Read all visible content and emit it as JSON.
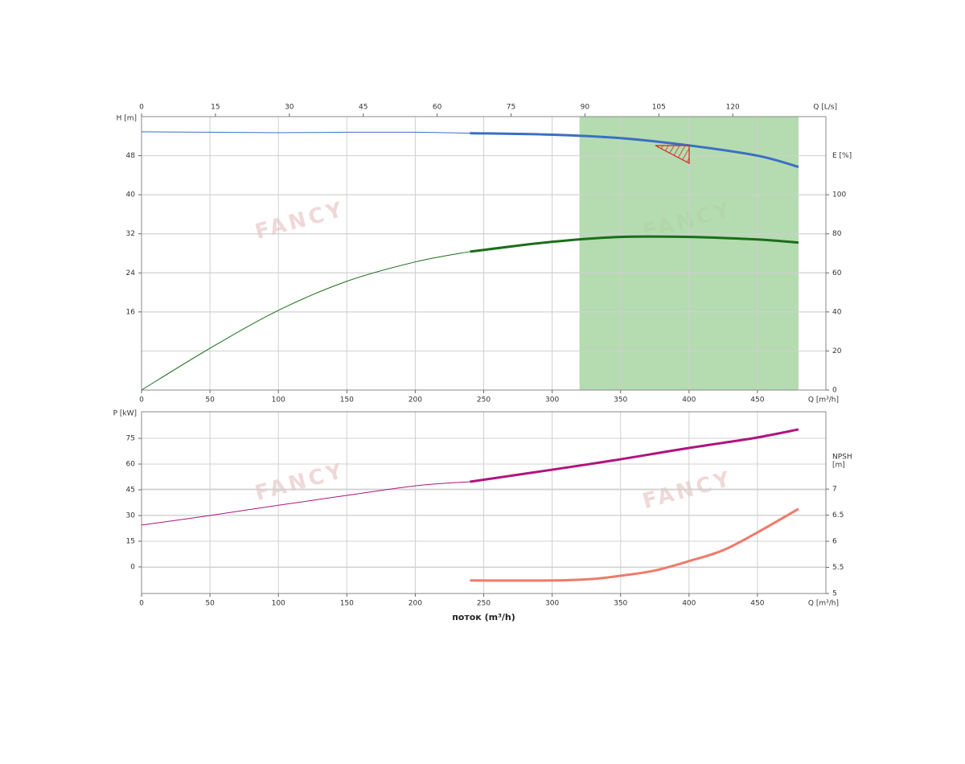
{
  "watermark": "FANCY",
  "chart_data": [
    {
      "type": "line",
      "x_label": "Q [m³/h]",
      "x2_label": "Q [L/s]",
      "y_label": "H [m]",
      "y2_label": [
        "E [%]"
      ],
      "xlim": [
        0,
        500
      ],
      "xticks": [
        0,
        50,
        100,
        150,
        200,
        250,
        300,
        350,
        400,
        450
      ],
      "x2lim": [
        0,
        138.9
      ],
      "x2ticks": [
        0,
        15,
        30,
        45,
        60,
        75,
        90,
        105,
        120
      ],
      "ylim": [
        0,
        56
      ],
      "yticks": [
        16,
        24,
        32,
        40,
        48
      ],
      "y2lim": [
        0,
        140
      ],
      "y2ticks": [
        0,
        20,
        40,
        60,
        80,
        100
      ],
      "band": [
        320,
        480
      ],
      "band_color": "#a8d5a2",
      "grid": true,
      "thick_from": 240,
      "x": [
        0,
        50,
        100,
        150,
        200,
        240,
        300,
        350,
        400,
        450,
        480
      ],
      "series": [
        {
          "name": "H",
          "color": "#3a6fc4",
          "values": [
            52.9,
            52.8,
            52.7,
            52.8,
            52.8,
            52.6,
            52.3,
            51.6,
            50.1,
            48,
            45.7
          ]
        },
        {
          "name": "E",
          "color": "#1a6e1a",
          "axis": "y2",
          "values": [
            0,
            21.4,
            40.8,
            55.7,
            65.6,
            70.9,
            75.9,
            78.4,
            78.4,
            77.1,
            75.5
          ]
        }
      ]
    },
    {
      "type": "line",
      "x_label": "Q [m³/h]",
      "main_x_label": "поток (m³/h)",
      "y_label": "P [kW]",
      "y2_label": [
        "NPSH",
        "[m]"
      ],
      "xlim": [
        0,
        500
      ],
      "xticks": [
        0,
        50,
        100,
        150,
        200,
        250,
        300,
        350,
        400,
        450
      ],
      "ylim": [
        -15.5,
        90.5
      ],
      "yticks": [
        0,
        15,
        30,
        45,
        60,
        75
      ],
      "y2lim": [
        5,
        8.48
      ],
      "y2ticks": [
        5,
        5.5,
        6,
        6.5,
        7
      ],
      "grid": true,
      "thick_from": 240,
      "x": [
        0,
        50,
        100,
        150,
        200,
        240,
        300,
        330,
        350,
        375,
        400,
        425,
        450,
        480
      ],
      "series": [
        {
          "name": "P",
          "color": "#b0147e",
          "values": [
            24.4,
            30,
            36,
            41.7,
            47.3,
            49.7,
            56.7,
            60.3,
            62.8,
            66.1,
            69.4,
            72.4,
            75.5,
            80.2
          ]
        },
        {
          "name": "NPSH",
          "color": "#f07a6a",
          "axis": "y2",
          "values": [
            null,
            null,
            null,
            null,
            null,
            5.25,
            5.25,
            5.28,
            5.34,
            5.44,
            5.62,
            5.83,
            6.17,
            6.62
          ]
        }
      ]
    }
  ]
}
